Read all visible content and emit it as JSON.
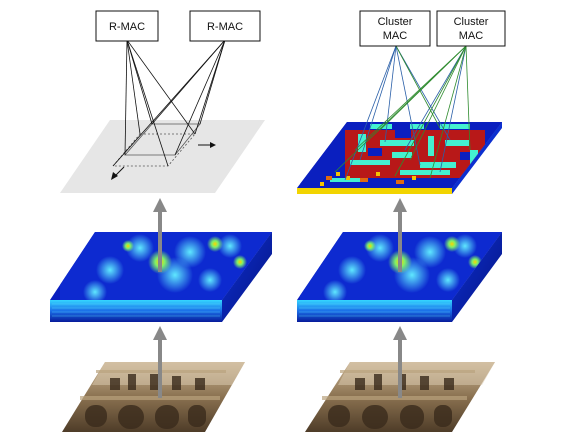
{
  "left_panel": {
    "boxes": [
      "R-MAC",
      "R-MAC"
    ]
  },
  "right_panel": {
    "boxes": [
      {
        "line1": "Cluster",
        "line2": "MAC"
      },
      {
        "line1": "Cluster",
        "line2": "MAC"
      }
    ]
  },
  "colors": {
    "arrow": "#888888",
    "left_lines": "#111111",
    "right_lines_blue": "#2a5fa8",
    "right_lines_green": "#2e8b2e",
    "plane_gray": "#e6e6e6",
    "heatmap_base": "#0a1fbf",
    "cluster_red": "#b81818",
    "cluster_cyan": "#44f0d0"
  }
}
